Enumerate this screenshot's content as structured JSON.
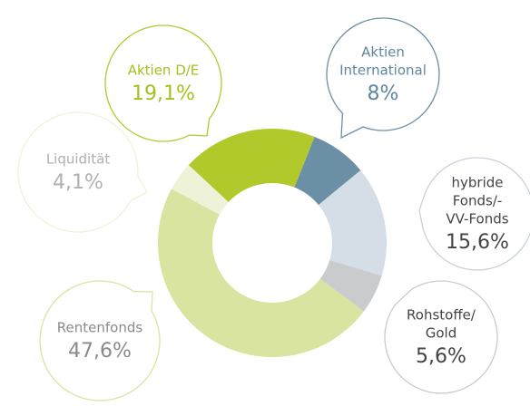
{
  "chart_data": {
    "type": "pie",
    "donut": true,
    "categories": [
      [
        "Aktien D/E"
      ],
      [
        "Aktien",
        "International"
      ],
      [
        "hybride",
        "Fonds/-",
        "VV-Fonds"
      ],
      [
        "Rohstoffe/",
        "Gold"
      ],
      [
        "Rentenfonds"
      ],
      [
        "Liquidität"
      ]
    ],
    "values": [
      19.1,
      8,
      15.6,
      5.6,
      47.6,
      4.1
    ],
    "value_labels": [
      "19,1%",
      "8%",
      "15,6%",
      "5,6%",
      "47,6%",
      "4,1%"
    ],
    "colors": [
      "#b1c92b",
      "#6b8fa4",
      "#d5dde7",
      "#c9cbcc",
      "#d9e4a1",
      "#eef3d8"
    ]
  }
}
